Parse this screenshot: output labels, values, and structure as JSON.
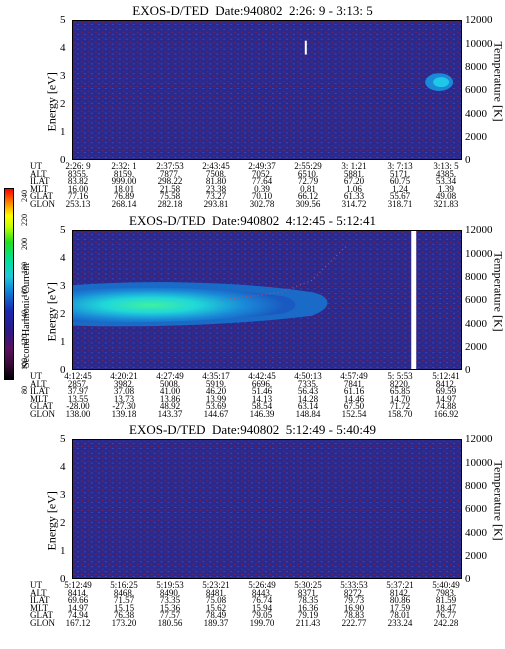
{
  "chart_data": [
    {
      "type": "heatmap",
      "title": "EXOS-D/TED  Date:940802  2:26: 9 - 3:13: 5",
      "ylabel": "Energy [eV]",
      "y2label": "Temperature [K]",
      "ylim": [
        0,
        5
      ],
      "y2lim": [
        0,
        12000
      ],
      "yticks": [
        "0",
        "1",
        "2",
        "3",
        "4",
        "5"
      ],
      "y2ticks": [
        "0",
        "2000",
        "4000",
        "6000",
        "8000",
        "10000",
        "12000"
      ],
      "ephemeris": {
        "labels": [
          "UT",
          "ALT",
          "ILAT",
          "MLT",
          "GLAT",
          "GLON"
        ],
        "columns": [
          [
            "2:26: 9",
            "8355.",
            "83.82",
            "16.00",
            "77.16",
            "253.13"
          ],
          [
            "2:32: 1",
            "8159.",
            "999.00",
            "18.01",
            "76.89",
            "268.14"
          ],
          [
            "2:37:53",
            "7877.",
            "298.22",
            "21.58",
            "75.58",
            "282.18"
          ],
          [
            "2:43:45",
            "7508.",
            "81.80",
            "23.38",
            "73.27",
            "293.81"
          ],
          [
            "2:49:37",
            "7052.",
            "77.64",
            "0.39",
            "70.10",
            "302.78"
          ],
          [
            "2:55:29",
            "6510.",
            "72.79",
            "0.81",
            "66.12",
            "309.56"
          ],
          [
            "3: 1:21",
            "5881.",
            "67.20",
            "1.06",
            "61.33",
            "314.72"
          ],
          [
            "3: 7:13",
            "5171.",
            "60.75",
            "1.24",
            "55.67",
            "318.71"
          ],
          [
            "3:13: 5",
            "4385.",
            "53.34",
            "1.39",
            "49.08",
            "321.83"
          ]
        ]
      }
    },
    {
      "type": "heatmap",
      "title": "EXOS-D/TED  Date:940802  4:12:45 - 5:12:41",
      "ylabel": "Energy [eV]",
      "y2label": "Temperature [K]",
      "ylim": [
        0,
        5
      ],
      "y2lim": [
        0,
        12000
      ],
      "yticks": [
        "0",
        "1",
        "2",
        "3",
        "4",
        "5"
      ],
      "y2ticks": [
        "0",
        "2000",
        "4000",
        "6000",
        "8000",
        "10000",
        "12000"
      ],
      "ephemeris": {
        "labels": [
          "UT",
          "ALT",
          "ILAT",
          "MLT",
          "GLAT",
          "GLON"
        ],
        "columns": [
          [
            "4:12:45",
            "2857.",
            "37.97",
            "13.55",
            "-28.00",
            "138.00"
          ],
          [
            "4:20:21",
            "3982.",
            "37.08",
            "13.73",
            "-27.30",
            "139.18"
          ],
          [
            "4:27:49",
            "5008.",
            "41.00",
            "13.86",
            "48.92",
            "143.37"
          ],
          [
            "4:35:17",
            "5919.",
            "46.20",
            "13.99",
            "53.69",
            "144.67"
          ],
          [
            "4:42:45",
            "6696.",
            "51.46",
            "14.13",
            "58.54",
            "146.39"
          ],
          [
            "4:50:13",
            "7335.",
            "56.43",
            "14.28",
            "63.14",
            "148.84"
          ],
          [
            "4:57:49",
            "7841.",
            "61.16",
            "14.46",
            "67.50",
            "152.54"
          ],
          [
            "5: 5:53",
            "8220.",
            "65.85",
            "14.70",
            "71.72",
            "158.70"
          ],
          [
            "5:12:41",
            "8412.",
            "69.59",
            "14.97",
            "74.88",
            "166.92"
          ]
        ]
      }
    },
    {
      "type": "heatmap",
      "title": "EXOS-D/TED  Date:940802  5:12:49 - 5:40:49",
      "ylabel": "Energy [eV]",
      "y2label": "Temperature [K]",
      "ylim": [
        0,
        5
      ],
      "y2lim": [
        0,
        12000
      ],
      "yticks": [
        "0",
        "1",
        "2",
        "3",
        "4",
        "5"
      ],
      "y2ticks": [
        "0",
        "2000",
        "4000",
        "6000",
        "8000",
        "10000",
        "12000"
      ],
      "ephemeris": {
        "labels": [
          "UT",
          "ALT",
          "ILAT",
          "MLT",
          "GLAT",
          "GLON"
        ],
        "columns": [
          [
            "5:12:49",
            "8414.",
            "69.66",
            "14.97",
            "74.94",
            "167.12"
          ],
          [
            "5:16:25",
            "8468.",
            "71.57",
            "15.15",
            "76.38",
            "173.20"
          ],
          [
            "5:19:53",
            "8490.",
            "73.35",
            "15.36",
            "77.57",
            "180.56"
          ],
          [
            "5:23:21",
            "8481.",
            "75.08",
            "15.62",
            "78.49",
            "189.37"
          ],
          [
            "5:26:49",
            "8443.",
            "76.74",
            "15.94",
            "79.05",
            "199.70"
          ],
          [
            "5:30:25",
            "8371.",
            "78.35",
            "16.36",
            "79.19",
            "211.43"
          ],
          [
            "5:33:53",
            "8272.",
            "79.73",
            "16.90",
            "78.83",
            "222.77"
          ],
          [
            "5:37:21",
            "8142.",
            "80.86",
            "17.59",
            "78.01",
            "233.24"
          ],
          [
            "5:40:49",
            "7983.",
            "81.59",
            "18.47",
            "76.77",
            "242.28"
          ]
        ]
      }
    }
  ],
  "colorbar": {
    "title": "Second Harmonic Current",
    "ticks": [
      "80",
      "100",
      "120",
      "140",
      "160",
      "180",
      "200",
      "220",
      "240"
    ]
  },
  "colors": {
    "background_noise": "#2b2a8c",
    "speckle": "#8a1a3a",
    "core": "#20e0c0",
    "halo": "#1a8ad8"
  }
}
